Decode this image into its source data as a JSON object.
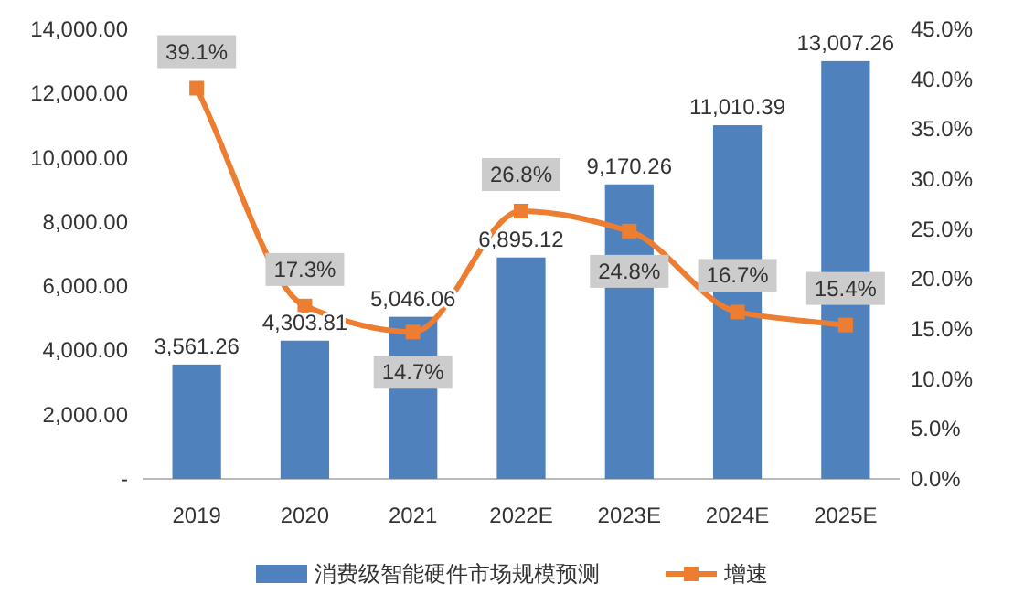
{
  "chart_data": {
    "type": "bar",
    "categories": [
      "2019",
      "2020",
      "2021",
      "2022E",
      "2023E",
      "2024E",
      "2025E"
    ],
    "series": [
      {
        "name": "消费级智能硬件市场规模预测",
        "color": "#4f81bd",
        "values": [
          3561.26,
          4303.81,
          5046.06,
          6895.12,
          9170.26,
          11010.39,
          13007.26
        ],
        "value_labels": [
          "3,561.26",
          "4,303.81",
          "5,046.06",
          "6,895.12",
          "9,170.26",
          "11,010.39",
          "13,007.26"
        ]
      },
      {
        "name": "增速",
        "type": "line",
        "axis": "y2",
        "color": "#ed7d31",
        "values": [
          39.1,
          17.3,
          14.7,
          26.8,
          24.8,
          16.7,
          15.4
        ],
        "value_labels": [
          "39.1%",
          "17.3%",
          "14.7%",
          "26.8%",
          "24.8%",
          "16.7%",
          "15.4%"
        ]
      }
    ],
    "ylim": [
      0,
      14000
    ],
    "yticks": [
      {
        "value": 0,
        "label": "-"
      },
      {
        "value": 2000,
        "label": "2,000.00"
      },
      {
        "value": 4000,
        "label": "4,000.00"
      },
      {
        "value": 6000,
        "label": "6,000.00"
      },
      {
        "value": 8000,
        "label": "8,000.00"
      },
      {
        "value": 10000,
        "label": "10,000.00"
      },
      {
        "value": 12000,
        "label": "12,000.00"
      },
      {
        "value": 14000,
        "label": "14,000.00"
      }
    ],
    "y2lim": [
      0,
      45
    ],
    "y2ticks": [
      {
        "value": 0,
        "label": "0.0%"
      },
      {
        "value": 5,
        "label": "5.0%"
      },
      {
        "value": 10,
        "label": "10.0%"
      },
      {
        "value": 15,
        "label": "15.0%"
      },
      {
        "value": 20,
        "label": "20.0%"
      },
      {
        "value": 25,
        "label": "25.0%"
      },
      {
        "value": 30,
        "label": "30.0%"
      },
      {
        "value": 35,
        "label": "35.0%"
      },
      {
        "value": 40,
        "label": "40.0%"
      },
      {
        "value": 45,
        "label": "45.0%"
      }
    ],
    "marker": "square",
    "line_style": "solid",
    "legend": "bottom"
  }
}
